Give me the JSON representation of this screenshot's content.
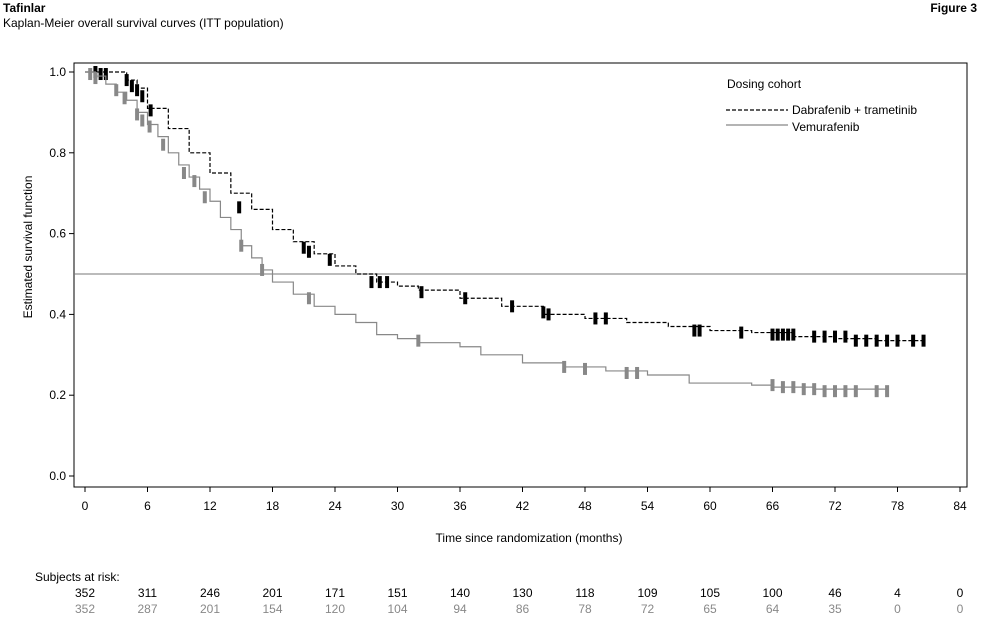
{
  "header": {
    "drug": "Tafinlar",
    "subtitle": "Kaplan-Meier overall survival curves (ITT population)",
    "figure_label": "Figure 3"
  },
  "chart_data": {
    "type": "line",
    "step": true,
    "xlabel": "Time since randomization (months)",
    "ylabel": "Estimated survival function",
    "xlim": [
      0,
      84
    ],
    "ylim": [
      0,
      1
    ],
    "xticks": [
      0,
      6,
      12,
      18,
      24,
      30,
      36,
      42,
      48,
      54,
      60,
      66,
      72,
      78,
      84
    ],
    "yticks": [
      "0.0",
      "0.2",
      "0.4",
      "0.6",
      "0.8",
      "1.0"
    ],
    "reference_line": 0.5,
    "legend": {
      "title": "Dosing cohort",
      "placement": "top-right"
    },
    "series": [
      {
        "name": "Dabrafenib + trametinib",
        "color": "#000000",
        "dash": "dashed",
        "points": [
          [
            0,
            1.0
          ],
          [
            2,
            1.0
          ],
          [
            4,
            0.98
          ],
          [
            5,
            0.96
          ],
          [
            6,
            0.91
          ],
          [
            8,
            0.86
          ],
          [
            10,
            0.8
          ],
          [
            12,
            0.75
          ],
          [
            14,
            0.7
          ],
          [
            16,
            0.66
          ],
          [
            18,
            0.61
          ],
          [
            20,
            0.58
          ],
          [
            22,
            0.55
          ],
          [
            24,
            0.52
          ],
          [
            26,
            0.5
          ],
          [
            28,
            0.48
          ],
          [
            30,
            0.47
          ],
          [
            32,
            0.46
          ],
          [
            36,
            0.44
          ],
          [
            40,
            0.42
          ],
          [
            44,
            0.4
          ],
          [
            48,
            0.39
          ],
          [
            52,
            0.38
          ],
          [
            56,
            0.37
          ],
          [
            60,
            0.36
          ],
          [
            64,
            0.355
          ],
          [
            68,
            0.345
          ],
          [
            72,
            0.34
          ],
          [
            76,
            0.335
          ],
          [
            80.5,
            0.335
          ]
        ],
        "censor_marks": [
          [
            1,
            1.0
          ],
          [
            1.5,
            0.995
          ],
          [
            2,
            0.995
          ],
          [
            4,
            0.98
          ],
          [
            4.5,
            0.965
          ],
          [
            5,
            0.955
          ],
          [
            5.5,
            0.94
          ],
          [
            6.3,
            0.905
          ],
          [
            14.8,
            0.665
          ],
          [
            21,
            0.565
          ],
          [
            21.5,
            0.555
          ],
          [
            23.5,
            0.535
          ],
          [
            27.5,
            0.48
          ],
          [
            28.3,
            0.48
          ],
          [
            29,
            0.48
          ],
          [
            32.3,
            0.455
          ],
          [
            36.5,
            0.44
          ],
          [
            41,
            0.42
          ],
          [
            44,
            0.405
          ],
          [
            44.5,
            0.4
          ],
          [
            49,
            0.39
          ],
          [
            50,
            0.39
          ],
          [
            58.5,
            0.36
          ],
          [
            59,
            0.36
          ],
          [
            63,
            0.355
          ],
          [
            66,
            0.35
          ],
          [
            66.5,
            0.35
          ],
          [
            67,
            0.35
          ],
          [
            67.5,
            0.35
          ],
          [
            68,
            0.35
          ],
          [
            70,
            0.345
          ],
          [
            71,
            0.345
          ],
          [
            72,
            0.345
          ],
          [
            73,
            0.345
          ],
          [
            74,
            0.335
          ],
          [
            75,
            0.335
          ],
          [
            76,
            0.335
          ],
          [
            77,
            0.335
          ],
          [
            78,
            0.335
          ],
          [
            79.5,
            0.335
          ],
          [
            80.5,
            0.335
          ]
        ]
      },
      {
        "name": "Vemurafenib",
        "color": "#888888",
        "dash": "solid",
        "points": [
          [
            0,
            1.0
          ],
          [
            1,
            0.99
          ],
          [
            2,
            0.97
          ],
          [
            3,
            0.95
          ],
          [
            4,
            0.93
          ],
          [
            5,
            0.9
          ],
          [
            6,
            0.87
          ],
          [
            7,
            0.84
          ],
          [
            8,
            0.8
          ],
          [
            9,
            0.77
          ],
          [
            10,
            0.74
          ],
          [
            11,
            0.71
          ],
          [
            12,
            0.68
          ],
          [
            13,
            0.64
          ],
          [
            14,
            0.61
          ],
          [
            15,
            0.57
          ],
          [
            16,
            0.54
          ],
          [
            17,
            0.51
          ],
          [
            18,
            0.48
          ],
          [
            20,
            0.45
          ],
          [
            22,
            0.42
          ],
          [
            24,
            0.4
          ],
          [
            26,
            0.38
          ],
          [
            28,
            0.35
          ],
          [
            30,
            0.34
          ],
          [
            32,
            0.33
          ],
          [
            36,
            0.32
          ],
          [
            38,
            0.3
          ],
          [
            42,
            0.28
          ],
          [
            46,
            0.27
          ],
          [
            50,
            0.26
          ],
          [
            54,
            0.25
          ],
          [
            58,
            0.23
          ],
          [
            64,
            0.225
          ],
          [
            66,
            0.22
          ],
          [
            70,
            0.215
          ],
          [
            77,
            0.21
          ]
        ],
        "censor_marks": [
          [
            0.5,
            0.995
          ],
          [
            1,
            0.985
          ],
          [
            3,
            0.955
          ],
          [
            3.8,
            0.935
          ],
          [
            5,
            0.895
          ],
          [
            5.5,
            0.88
          ],
          [
            6.2,
            0.865
          ],
          [
            7.5,
            0.82
          ],
          [
            9.5,
            0.75
          ],
          [
            10.5,
            0.73
          ],
          [
            11.5,
            0.69
          ],
          [
            15,
            0.57
          ],
          [
            17,
            0.51
          ],
          [
            21.5,
            0.44
          ],
          [
            32,
            0.335
          ],
          [
            46,
            0.27
          ],
          [
            48,
            0.265
          ],
          [
            52,
            0.255
          ],
          [
            53,
            0.255
          ],
          [
            66,
            0.225
          ],
          [
            67,
            0.22
          ],
          [
            68,
            0.22
          ],
          [
            69,
            0.215
          ],
          [
            70,
            0.215
          ],
          [
            71,
            0.21
          ],
          [
            72,
            0.21
          ],
          [
            73,
            0.21
          ],
          [
            74,
            0.21
          ],
          [
            76,
            0.21
          ],
          [
            77,
            0.21
          ]
        ]
      }
    ],
    "risk_table": {
      "title": "Subjects at risk:",
      "rows": [
        {
          "series": "Dabrafenib + trametinib",
          "color": "#000000",
          "values": [
            "352",
            "311",
            "246",
            "201",
            "171",
            "151",
            "140",
            "130",
            "118",
            "109",
            "105",
            "100",
            "46",
            "4",
            "0"
          ]
        },
        {
          "series": "Vemurafenib",
          "color": "#888888",
          "values": [
            "352",
            "287",
            "201",
            "154",
            "120",
            "104",
            "94",
            "86",
            "78",
            "72",
            "65",
            "64",
            "35",
            "0",
            "0"
          ]
        }
      ]
    }
  }
}
